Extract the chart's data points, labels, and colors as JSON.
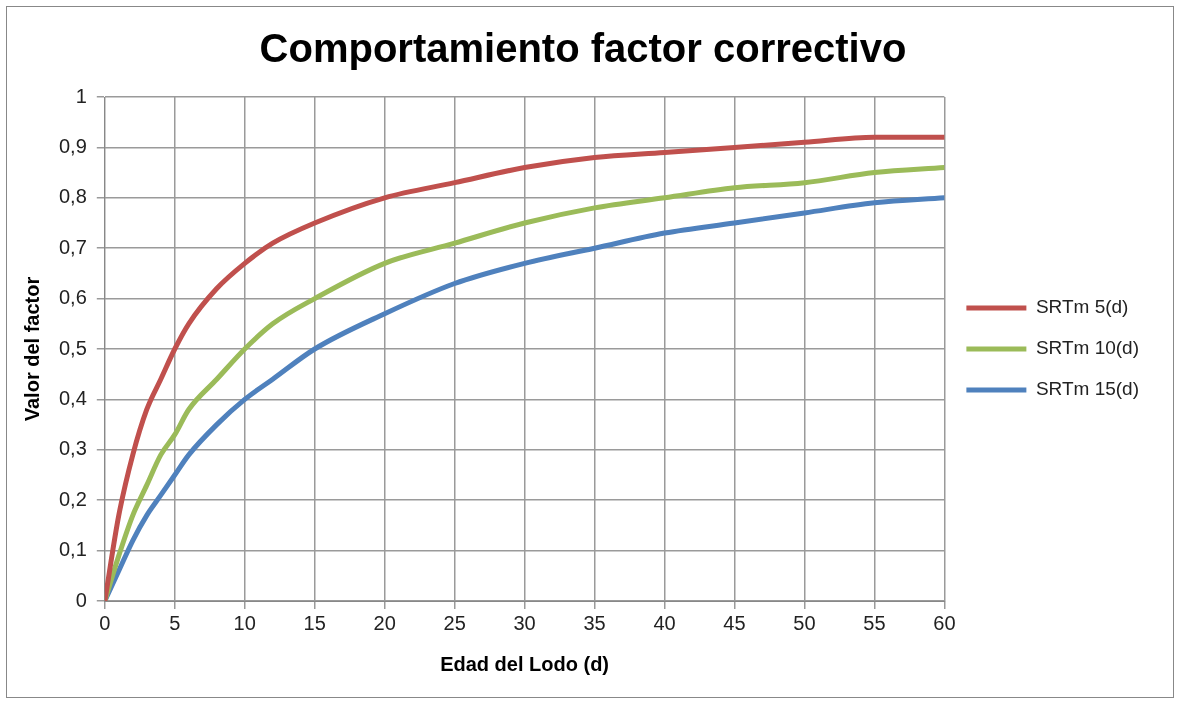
{
  "chart_data": {
    "type": "line",
    "title": "Comportamiento factor correctivo",
    "xlabel": "Edad del Lodo (d)",
    "ylabel": "Valor del factor",
    "x": [
      0,
      1,
      2,
      3,
      4,
      5,
      6,
      8,
      10,
      12,
      15,
      20,
      25,
      30,
      35,
      40,
      45,
      50,
      55,
      60
    ],
    "series": [
      {
        "name": "SRTm 5(d)",
        "color": "#c0504d",
        "values": [
          0,
          0.17,
          0.29,
          0.38,
          0.44,
          0.5,
          0.55,
          0.62,
          0.67,
          0.71,
          0.75,
          0.8,
          0.83,
          0.86,
          0.88,
          0.89,
          0.9,
          0.91,
          0.92,
          0.92
        ]
      },
      {
        "name": "SRTm 10(d)",
        "color": "#9bbb59",
        "values": [
          0,
          0.09,
          0.17,
          0.23,
          0.29,
          0.33,
          0.38,
          0.44,
          0.5,
          0.55,
          0.6,
          0.67,
          0.71,
          0.75,
          0.78,
          0.8,
          0.82,
          0.83,
          0.85,
          0.86
        ]
      },
      {
        "name": "SRTm 15(d)",
        "color": "#4f81bd",
        "values": [
          0,
          0.06,
          0.12,
          0.17,
          0.21,
          0.25,
          0.29,
          0.35,
          0.4,
          0.44,
          0.5,
          0.57,
          0.63,
          0.67,
          0.7,
          0.73,
          0.75,
          0.77,
          0.79,
          0.8
        ]
      }
    ],
    "xlim": [
      0,
      60
    ],
    "xticks": [
      0,
      5,
      10,
      15,
      20,
      25,
      30,
      35,
      40,
      45,
      50,
      55,
      60
    ],
    "ylim": [
      0,
      1
    ],
    "yticks": [
      0,
      {
        "value": 0.1,
        "label": "0,1"
      },
      {
        "value": 0.2,
        "label": "0,2"
      },
      {
        "value": 0.3,
        "label": "0,3"
      },
      {
        "value": 0.4,
        "label": "0,4"
      },
      {
        "value": 0.5,
        "label": "0,5"
      },
      {
        "value": 0.6,
        "label": "0,6"
      },
      {
        "value": 0.7,
        "label": "0,7"
      },
      {
        "value": 0.8,
        "label": "0,8"
      },
      {
        "value": 0.9,
        "label": "0,9"
      },
      1
    ],
    "grid": true,
    "legend": "right",
    "marker": "none",
    "line_style": "solid"
  }
}
